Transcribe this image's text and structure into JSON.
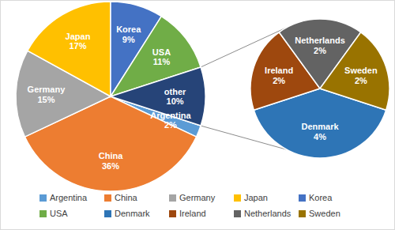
{
  "chart_data": {
    "type": "pie_of_pie",
    "categories": [
      "Argentina",
      "China",
      "Germany",
      "Japan",
      "Korea",
      "USA"
    ],
    "values": [
      2,
      36,
      15,
      17,
      9,
      11
    ],
    "value_labels": [
      "2%",
      "36%",
      "15%",
      "17%",
      "9%",
      "11%"
    ],
    "colors": [
      "#5b9bd5",
      "#ed7d31",
      "#a5a5a5",
      "#ffc000",
      "#4472c4",
      "#70ad47"
    ],
    "other": {
      "label": "other",
      "value": 10,
      "value_label": "10%",
      "color": "#264478",
      "categories": [
        "Denmark",
        "Ireland",
        "Netherlands",
        "Sweden"
      ],
      "values": [
        4,
        2,
        2,
        2
      ],
      "value_labels": [
        "4%",
        "2%",
        "2%",
        "2%"
      ],
      "colors": [
        "#2e75b6",
        "#9e480e",
        "#636363",
        "#997300"
      ]
    },
    "data_labels": true,
    "legend": "bottom"
  }
}
